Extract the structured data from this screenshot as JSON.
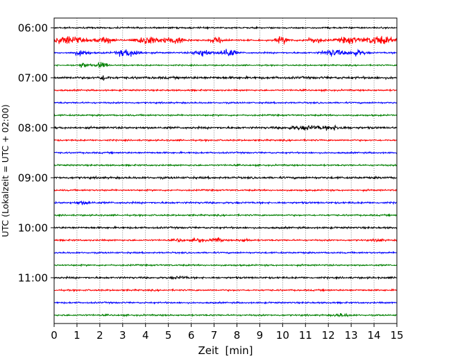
{
  "chart_data": {
    "type": "line",
    "title": "",
    "xlabel": "Zeit  [min]",
    "ylabel": "UTC (Lokalzeit = UTC + 02:00)",
    "xlim": [
      0,
      15
    ],
    "x_ticks": [
      "0",
      "1",
      "2",
      "3",
      "4",
      "5",
      "6",
      "7",
      "8",
      "9",
      "10",
      "11",
      "12",
      "13",
      "14",
      "15"
    ],
    "y_tick_labels": [
      "06:00",
      "07:00",
      "08:00",
      "09:00",
      "10:00",
      "11:00"
    ],
    "trace_interval_min": 15,
    "trace_color_cycle": [
      "#000000",
      "#ff0000",
      "#0000ff",
      "#008000"
    ],
    "grid": "vertical dotted at each minute",
    "traces": [
      {
        "start": "06:00",
        "noise": 0.3,
        "events": []
      },
      {
        "start": "06:15",
        "noise": 0.3,
        "events": [
          [
            0.6,
            1.0,
            1.6
          ],
          [
            2.2,
            0.7,
            1.2
          ],
          [
            4.1,
            0.9,
            1.6
          ],
          [
            5.3,
            0.8,
            1.2
          ],
          [
            7.2,
            0.6,
            1.0
          ],
          [
            10.0,
            0.5,
            1.2
          ],
          [
            11.4,
            0.6,
            1.0
          ],
          [
            12.9,
            0.8,
            1.2
          ],
          [
            14.2,
            1.0,
            1.6
          ]
        ]
      },
      {
        "start": "06:30",
        "noise": 0.3,
        "events": [
          [
            1.2,
            0.5,
            1.0
          ],
          [
            3.1,
            0.6,
            1.3
          ],
          [
            3.6,
            0.5,
            0.8
          ],
          [
            6.5,
            0.6,
            1.4
          ],
          [
            7.6,
            0.5,
            1.8
          ],
          [
            12.2,
            0.7,
            1.3
          ],
          [
            13.2,
            0.6,
            1.1
          ]
        ]
      },
      {
        "start": "06:45",
        "noise": 0.25,
        "events": [
          [
            1.3,
            0.4,
            0.9
          ],
          [
            2.1,
            0.35,
            1.3
          ]
        ]
      },
      {
        "start": "07:00",
        "noise": 0.45,
        "events": [
          [
            2.2,
            0.3,
            0.9
          ]
        ]
      },
      {
        "start": "07:15",
        "noise": 0.3,
        "events": []
      },
      {
        "start": "07:30",
        "noise": 0.3,
        "events": []
      },
      {
        "start": "07:45",
        "noise": 0.3,
        "events": []
      },
      {
        "start": "08:00",
        "noise": 0.4,
        "events": [
          [
            11.0,
            1.4,
            0.6
          ],
          [
            12.3,
            1.0,
            0.5
          ]
        ]
      },
      {
        "start": "08:15",
        "noise": 0.3,
        "events": []
      },
      {
        "start": "08:30",
        "noise": 0.3,
        "events": []
      },
      {
        "start": "08:45",
        "noise": 0.3,
        "events": []
      },
      {
        "start": "09:00",
        "noise": 0.4,
        "events": []
      },
      {
        "start": "09:15",
        "noise": 0.3,
        "events": []
      },
      {
        "start": "09:30",
        "noise": 0.35,
        "events": [
          [
            1.3,
            0.6,
            0.5
          ]
        ]
      },
      {
        "start": "09:45",
        "noise": 0.3,
        "events": []
      },
      {
        "start": "10:00",
        "noise": 0.35,
        "events": []
      },
      {
        "start": "10:15",
        "noise": 0.3,
        "events": [
          [
            5.5,
            0.3,
            0.6
          ],
          [
            6.3,
            0.4,
            0.8
          ],
          [
            7.1,
            0.4,
            0.8
          ],
          [
            8.3,
            0.4,
            0.6
          ],
          [
            14.2,
            0.3,
            0.6
          ]
        ]
      },
      {
        "start": "10:30",
        "noise": 0.3,
        "events": []
      },
      {
        "start": "10:45",
        "noise": 0.3,
        "events": []
      },
      {
        "start": "11:00",
        "noise": 0.35,
        "events": [
          [
            5.5,
            0.5,
            0.4
          ]
        ]
      },
      {
        "start": "11:15",
        "noise": 0.3,
        "events": []
      },
      {
        "start": "11:30",
        "noise": 0.3,
        "events": []
      },
      {
        "start": "11:45",
        "noise": 0.3,
        "events": [
          [
            12.6,
            0.6,
            0.5
          ]
        ]
      }
    ]
  }
}
